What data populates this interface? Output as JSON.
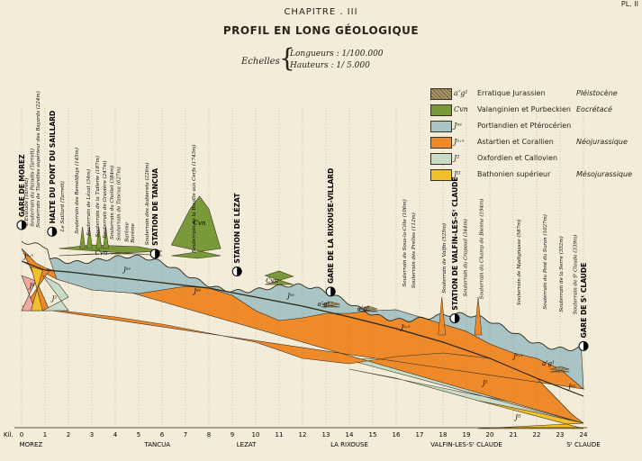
{
  "plate_number": "PL. II",
  "chapter": "CHAPITRE . III",
  "title": "PROFIL EN LONG GÉOLOGIQUE",
  "scales": {
    "label": "Echelles",
    "lengths": "Longueurs : 1/100.000",
    "heights": "Hauteurs : 1/ 5.000"
  },
  "legend": [
    {
      "symbol": "a’g¹",
      "text": "Erratique Jurassien",
      "stage": "Pléistocène",
      "color": "#9a8a58"
    },
    {
      "symbol": "Cvn",
      "text": "Valanginien et Purbeckien",
      "stage": "Eocrétacé",
      "color": "#7a9a3a"
    },
    {
      "symbol": "Jᵉˢ",
      "text": "Portlandien et Ptérocérien",
      "stage": "",
      "color": "#a9c4c4"
    },
    {
      "symbol": "Jᵃ·ˣ",
      "text": "Astartien et Corallien",
      "stage": "Néojurassique",
      "color": "#ee8a2a"
    },
    {
      "symbol": "J²",
      "text": "Oxfordien et Callovien",
      "stage": "",
      "color": "#c8dcc8"
    },
    {
      "symbol": "Jᴵᴵ",
      "text": "Bathonien supérieur",
      "stage": "Mésojurassique",
      "color": "#f2c02a"
    }
  ],
  "stations": [
    {
      "name": "GARE DE MOREZ",
      "km": 0
    },
    {
      "name": "HALTE DU PONT DU SAILLARD",
      "km": 1.3
    },
    {
      "name": "STATION DE TANCUA",
      "km": 5.7
    },
    {
      "name": "STATION DE LÉZAT",
      "km": 9.2
    },
    {
      "name": "GARE DE LA RIXOUSE-VILLARD",
      "km": 13.2
    },
    {
      "name": "STATION DE VALFIN-LES-Sᵗ CLAUDE",
      "km": 18.5
    },
    {
      "name": "GARE DE Sᵗ CLAUDE",
      "km": 24
    }
  ],
  "tunnels": [
    {
      "label": "L'Evalude (Tarrett)",
      "km": 0.15
    },
    {
      "label": "Souterrain du Paradis (Tarrett)",
      "km": 0.4
    },
    {
      "label": "Souterrain de Tiarettes supérieur des Bayards (224m)",
      "km": 0.65
    },
    {
      "label": "Le Saillard (Tarrett)",
      "km": 1.7
    },
    {
      "label": "Souterrain des Remelifuys (145m)",
      "km": 2.3
    },
    {
      "label": "Souterrain de Lézat (34m)",
      "km": 2.8
    },
    {
      "label": "Souterrain de la Tuilerie (187m)",
      "km": 3.2
    },
    {
      "label": "Souterrain de Gravière (247m)",
      "km": 3.5
    },
    {
      "label": "Souterrain du Chollet (384m)",
      "km": 3.8
    },
    {
      "label": "Souterrain de Tancua (627m)",
      "km": 4.1
    },
    {
      "label": "Barème",
      "km": 4.45
    },
    {
      "label": "Barème",
      "km": 4.7
    },
    {
      "label": "Souterrain des Aubierets (226m)",
      "km": 5.3
    },
    {
      "label": "Souterrain de la Bouille aux Cerfs (1743m)",
      "km": 7.3
    },
    {
      "label": "Souterrain de Sous-la-Côte (106m)",
      "km": 16.3
    },
    {
      "label": "Souterrain des Prelles (112m)",
      "km": 16.7
    },
    {
      "label": "Souterrain de Valfin (525m)",
      "km": 18.0
    },
    {
      "label": "Souterrain du Crapaud (344m)",
      "km": 18.9
    },
    {
      "label": "Souterrain du Champ de Bienne (194m)",
      "km": 19.6
    },
    {
      "label": "Souterrain de Madignasse (587m)",
      "km": 21.2
    },
    {
      "label": "Souterrain du Pont du Suran (1027m)",
      "km": 22.3
    },
    {
      "label": "Souterrain de la Serre (352m)",
      "km": 23.0
    },
    {
      "label": "Souterrain de Sᵗ Claude (339m)",
      "km": 23.6
    }
  ],
  "axis": {
    "unit": "Kil.",
    "km_ticks": [
      "0",
      "1",
      "2",
      "3",
      "4",
      "5",
      "6",
      "7",
      "8",
      "9",
      "10",
      "11",
      "12",
      "13",
      "14",
      "15",
      "16",
      "17",
      "18",
      "19",
      "20",
      "21",
      "22",
      "23",
      "24"
    ],
    "places": [
      {
        "label": "MOREZ",
        "km": 0.4
      },
      {
        "label": "TANCUA",
        "km": 5.8
      },
      {
        "label": "LEZAT",
        "km": 9.6
      },
      {
        "label": "LA RIXOUSE",
        "km": 14.0
      },
      {
        "label": "VALFIN-LES-Sᵗ CLAUDE",
        "km": 19.0
      },
      {
        "label": "Sᵗ CLAUDE",
        "km": 24.0
      }
    ]
  },
  "section_labels": [
    {
      "text": "Jᵃ·ˣ",
      "km": 0.3
    },
    {
      "text": "Jᴵᴵ",
      "km": 0.45
    },
    {
      "text": "J²",
      "km": 1.4
    },
    {
      "text": "Cvn",
      "km": 3.4
    },
    {
      "text": "Jᵉˢ",
      "km": 4.5
    },
    {
      "text": "Cvn",
      "km": 7.6
    },
    {
      "text": "Jᵉˢ",
      "km": 7.5
    },
    {
      "text": "Cvn",
      "km": 10.7
    },
    {
      "text": "Jᵉˢ",
      "km": 11.5
    },
    {
      "text": "a’g¹",
      "km": 12.9
    },
    {
      "text": "a’g¹",
      "km": 14.6
    },
    {
      "text": "Jᵃ·ˣ",
      "km": 16.4
    },
    {
      "text": "Jᵃ·ˣ",
      "km": 21.2
    },
    {
      "text": "J²",
      "km": 19.8
    },
    {
      "text": "Jᴵᴵ",
      "km": 21.2
    },
    {
      "text": "a’g¹",
      "km": 22.5
    },
    {
      "text": "Jᵉˢ",
      "km": 23.5
    }
  ]
}
